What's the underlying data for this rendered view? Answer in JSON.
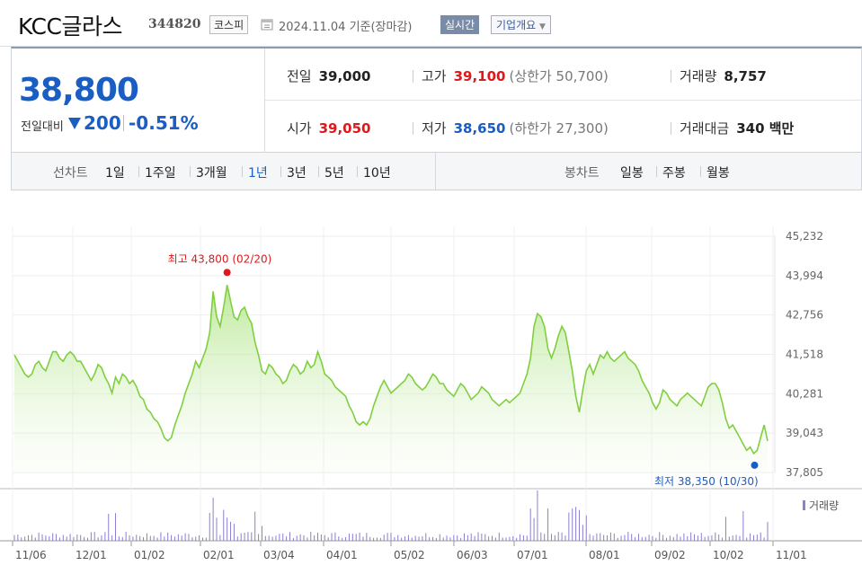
{
  "header": {
    "company_name": "KCC글라스",
    "stock_code": "344820",
    "market": "코스피",
    "date_text": "2024.11.04 기준(장마감)",
    "realtime_label": "실시간",
    "company_info_label": "기업개요"
  },
  "summary": {
    "price": "38,800",
    "change_label": "전일대비",
    "change_value": "200",
    "change_pct": "-0.51%",
    "prev_close": {
      "label": "전일",
      "value": "39,000"
    },
    "high": {
      "label": "고가",
      "value": "39,100",
      "sub": "(상한가 50,700)"
    },
    "volume": {
      "label": "거래량",
      "value": "8,757"
    },
    "open": {
      "label": "시가",
      "value": "39,050"
    },
    "low": {
      "label": "저가",
      "value": "38,650",
      "sub": "(하한가 27,300)"
    },
    "trade_value": {
      "label": "거래대금",
      "value": "340 백만"
    }
  },
  "periods": {
    "line_label": "선차트",
    "line_items": [
      "1일",
      "1주일",
      "3개월",
      "1년",
      "3년",
      "5년",
      "10년"
    ],
    "active": "1년",
    "candle_label": "봉차트",
    "candle_items": [
      "일봉",
      "주봉",
      "월봉"
    ]
  },
  "colors": {
    "up": "#e0181b",
    "down": "#1b5ec3",
    "line": "#7fcf3f",
    "volume": "#8a7fd0"
  },
  "chart_data": {
    "type": "area",
    "y_ticks": [
      "45,232",
      "43,994",
      "42,756",
      "41,518",
      "40,281",
      "39,043",
      "37,805"
    ],
    "ylim": [
      37805,
      45232
    ],
    "x_ticks": [
      "11/06",
      "12/01",
      "01/02",
      "02/01",
      "03/04",
      "04/01",
      "05/02",
      "06/03",
      "07/01",
      "08/01",
      "09/02",
      "10/02",
      "11/01"
    ],
    "max_label": "최고 43,800 (02/20)",
    "min_label": "최저 38,350 (10/30)",
    "volume_legend": "거래량",
    "series": [
      {
        "values": [
          41500,
          41300,
          41100,
          40900,
          40800,
          40900,
          41200,
          41300,
          41100,
          41000,
          41300,
          41600,
          41600,
          41400,
          41300,
          41500,
          41600,
          41500,
          41300,
          41300,
          41100,
          40900,
          40700,
          40900,
          41200,
          41100,
          40800,
          40600,
          40300,
          40800,
          40600,
          40900,
          40800,
          40600,
          40700,
          40500,
          40200,
          40100,
          39800,
          39700,
          39500,
          39400,
          39200,
          38900,
          38800,
          38900,
          39300,
          39600,
          39900,
          40300,
          40600,
          40900,
          41300,
          41100,
          41400,
          41700,
          42200,
          43500,
          42700,
          42400,
          43000,
          43700,
          43200,
          42700,
          42600,
          42900,
          43000,
          42700,
          42500,
          41900,
          41500,
          41000,
          40900,
          41200,
          41100,
          40900,
          40800,
          40600,
          40700,
          41000,
          41200,
          41100,
          40900,
          41000,
          41300,
          41100,
          41200,
          41600,
          41300,
          40900,
          40800,
          40700,
          40500,
          40400,
          40300,
          40200,
          39900,
          39700,
          39400,
          39300,
          39400,
          39300,
          39500,
          39900,
          40200,
          40500,
          40700,
          40500,
          40300,
          40400,
          40500,
          40600,
          40700,
          40900,
          40800,
          40600,
          40500,
          40400,
          40500,
          40700,
          40900,
          40800,
          40600,
          40600,
          40400,
          40300,
          40200,
          40400,
          40600,
          40500,
          40300,
          40100,
          40200,
          40300,
          40500,
          40400,
          40300,
          40100,
          40000,
          39900,
          40000,
          40100,
          40000,
          40100,
          40200,
          40300,
          40600,
          40900,
          41400,
          42400,
          42800,
          42700,
          42400,
          41700,
          41400,
          41700,
          42100,
          42400,
          42200,
          41600,
          41000,
          40200,
          39700,
          40400,
          41000,
          41200,
          40900,
          41200,
          41500,
          41400,
          41600,
          41400,
          41300,
          41400,
          41500,
          41600,
          41400,
          41300,
          41200,
          41000,
          40700,
          40500,
          40300,
          40000,
          39800,
          40000,
          40400,
          40300,
          40100,
          40000,
          39900,
          40100,
          40200,
          40300,
          40200,
          40100,
          40000,
          39900,
          40200,
          40500,
          40600,
          40600,
          40400,
          40000,
          39500,
          39200,
          39300,
          39100,
          38900,
          38700,
          38500,
          38600,
          38400,
          38500,
          38900,
          39300,
          38800
        ]
      }
    ]
  }
}
